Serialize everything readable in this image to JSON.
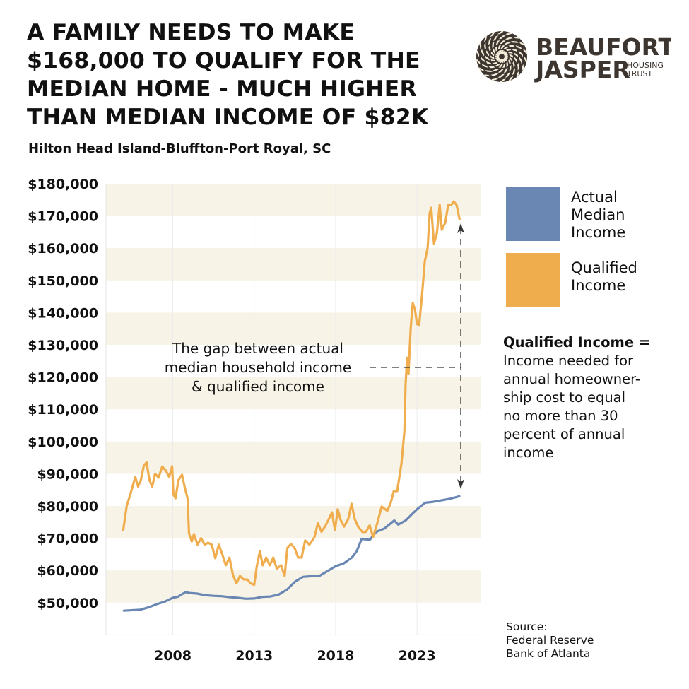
{
  "title_lines": [
    "A FAMILY NEEDS TO MAKE",
    "$168,000 TO QUALIFY FOR THE",
    "MEDIAN HOME - MUCH HIGHER",
    "THAN MEDIAN INCOME OF $82K"
  ],
  "subtitle": "Hilton Head Island-Bluffton-Port Royal, SC",
  "logo": {
    "line1": "BEAUFORT",
    "line2": "JASPER",
    "line3a": "HOUSING",
    "line3b": "TRUST"
  },
  "legend": {
    "actual_lines": [
      "Actual",
      "Median",
      "Income"
    ],
    "qualified_lines": [
      "Qualified",
      "Income"
    ]
  },
  "definition": {
    "heading": "Qualified Income =",
    "lines": [
      "Income needed for",
      "annual homeowner-",
      "ship cost to equal",
      "no more than 30",
      "percent of annual",
      "income"
    ]
  },
  "annotation_lines": [
    "The gap between actual",
    "median household income",
    "& qualified income"
  ],
  "source_lines": [
    "Source:",
    "Federal Reserve",
    "Bank of Atlanta"
  ],
  "colors": {
    "actual": "#6a87b4",
    "qualified": "#f0ad4e",
    "band": "#f7f3e7",
    "text": "#111111"
  },
  "chart_data": {
    "type": "line",
    "title": "A FAMILY NEEDS TO MAKE $168,000 TO QUALIFY FOR THE MEDIAN HOME - MUCH HIGHER THAN MEDIAN INCOME OF $82K",
    "xlabel": "",
    "ylabel": "",
    "xlim": [
      2003.9,
      2026.9
    ],
    "ylim": [
      40000,
      180000
    ],
    "x_ticks": [
      2008,
      2013,
      2018,
      2023
    ],
    "x_tick_labels": [
      "2008",
      "2013",
      "2018",
      "2023"
    ],
    "y_ticks": [
      180000,
      170000,
      160000,
      150000,
      140000,
      130000,
      120000,
      110000,
      100000,
      90000,
      80000,
      70000,
      60000,
      50000
    ],
    "y_tick_labels": [
      "$180,000",
      "$170,000",
      "$160,000",
      "$150,000",
      "$140,000",
      "$130,000",
      "$120,000",
      "$110,000",
      "$100,000",
      "$90,000",
      "$80,000",
      "$70,000",
      "$60,000",
      "$50,000"
    ],
    "legend_position": "right",
    "series": [
      {
        "name": "Actual Median Income",
        "color": "#6a87b4",
        "x": [
          2005.0,
          2006.0,
          2006.5,
          2007.0,
          2007.5,
          2008.0,
          2008.3,
          2008.8,
          2009.0,
          2009.5,
          2010.0,
          2010.5,
          2011.0,
          2011.5,
          2012.0,
          2012.5,
          2013.0,
          2013.5,
          2014.0,
          2014.5,
          2015.0,
          2015.5,
          2016.0,
          2016.5,
          2017.0,
          2017.5,
          2018.0,
          2018.5,
          2019.0,
          2019.3,
          2019.6,
          2020.1,
          2020.5,
          2021.0,
          2021.6,
          2021.85,
          2022.3,
          2023.0,
          2023.5,
          2024.0,
          2025.0,
          2025.6
        ],
        "y": [
          47500,
          47800,
          48500,
          49500,
          50300,
          51500,
          51800,
          53300,
          53000,
          52800,
          52300,
          52100,
          52000,
          51700,
          51500,
          51200,
          51300,
          51800,
          51900,
          52500,
          54000,
          56500,
          58000,
          58200,
          58300,
          59800,
          61300,
          62200,
          64000,
          66000,
          69800,
          69500,
          72000,
          73000,
          75500,
          74200,
          75500,
          79000,
          81000,
          81300,
          82200,
          83000
        ]
      },
      {
        "name": "Qualified Income",
        "color": "#f0ad4e",
        "x": [
          2004.96,
          2005.17,
          2005.39,
          2005.7,
          2005.87,
          2006.04,
          2006.22,
          2006.39,
          2006.57,
          2006.74,
          2006.91,
          2007.13,
          2007.35,
          2007.57,
          2007.78,
          2007.96,
          2008.04,
          2008.17,
          2008.35,
          2008.57,
          2008.74,
          2008.91,
          2009.0,
          2009.17,
          2009.3,
          2009.52,
          2009.74,
          2009.96,
          2010.17,
          2010.39,
          2010.61,
          2010.83,
          2011.04,
          2011.26,
          2011.48,
          2011.7,
          2011.91,
          2012.13,
          2012.35,
          2012.57,
          2012.78,
          2013.0,
          2013.17,
          2013.35,
          2013.52,
          2013.74,
          2013.96,
          2014.17,
          2014.39,
          2014.65,
          2014.87,
          2015.04,
          2015.26,
          2015.48,
          2015.7,
          2015.91,
          2016.13,
          2016.39,
          2016.7,
          2016.91,
          2017.13,
          2017.35,
          2017.57,
          2017.78,
          2017.96,
          2018.13,
          2018.3,
          2018.52,
          2018.78,
          2018.98,
          2019.17,
          2019.39,
          2019.65,
          2019.87,
          2020.09,
          2020.3,
          2020.52,
          2020.83,
          2021.17,
          2021.39,
          2021.57,
          2021.78,
          2022.04,
          2022.22,
          2022.3,
          2022.39,
          2022.48,
          2022.61,
          2022.74,
          2022.87,
          2023.0,
          2023.13,
          2023.3,
          2023.48,
          2023.65,
          2023.78,
          2023.87,
          2024.04,
          2024.22,
          2024.39,
          2024.52,
          2024.74,
          2024.91,
          2025.09,
          2025.26,
          2025.43,
          2025.61
        ],
        "y": [
          72500,
          80000,
          83500,
          89000,
          86000,
          88000,
          92500,
          93500,
          88000,
          86000,
          90000,
          88800,
          92200,
          91000,
          89000,
          92300,
          83500,
          82400,
          88000,
          89700,
          85700,
          82400,
          71500,
          69000,
          71300,
          68000,
          70000,
          68000,
          68600,
          68000,
          63800,
          68000,
          65000,
          61600,
          64000,
          58500,
          56000,
          58300,
          57200,
          57200,
          56000,
          55500,
          61600,
          66000,
          61600,
          64000,
          61600,
          64000,
          60500,
          61600,
          58300,
          67000,
          68200,
          67000,
          64000,
          64000,
          69300,
          68000,
          70300,
          74700,
          72000,
          73600,
          75800,
          78000,
          72500,
          79000,
          75800,
          73600,
          76000,
          80700,
          76000,
          73500,
          71900,
          72000,
          74000,
          70300,
          74000,
          79800,
          78500,
          81000,
          84600,
          84600,
          93000,
          103000,
          118000,
          126000,
          121000,
          135000,
          143000,
          141000,
          136500,
          136000,
          145000,
          156000,
          160000,
          171000,
          172500,
          161400,
          164600,
          173400,
          165700,
          168000,
          173400,
          173400,
          174500,
          173400,
          169000
        ]
      }
    ],
    "annotations": [
      "The gap between actual median household income & qualified income"
    ]
  }
}
